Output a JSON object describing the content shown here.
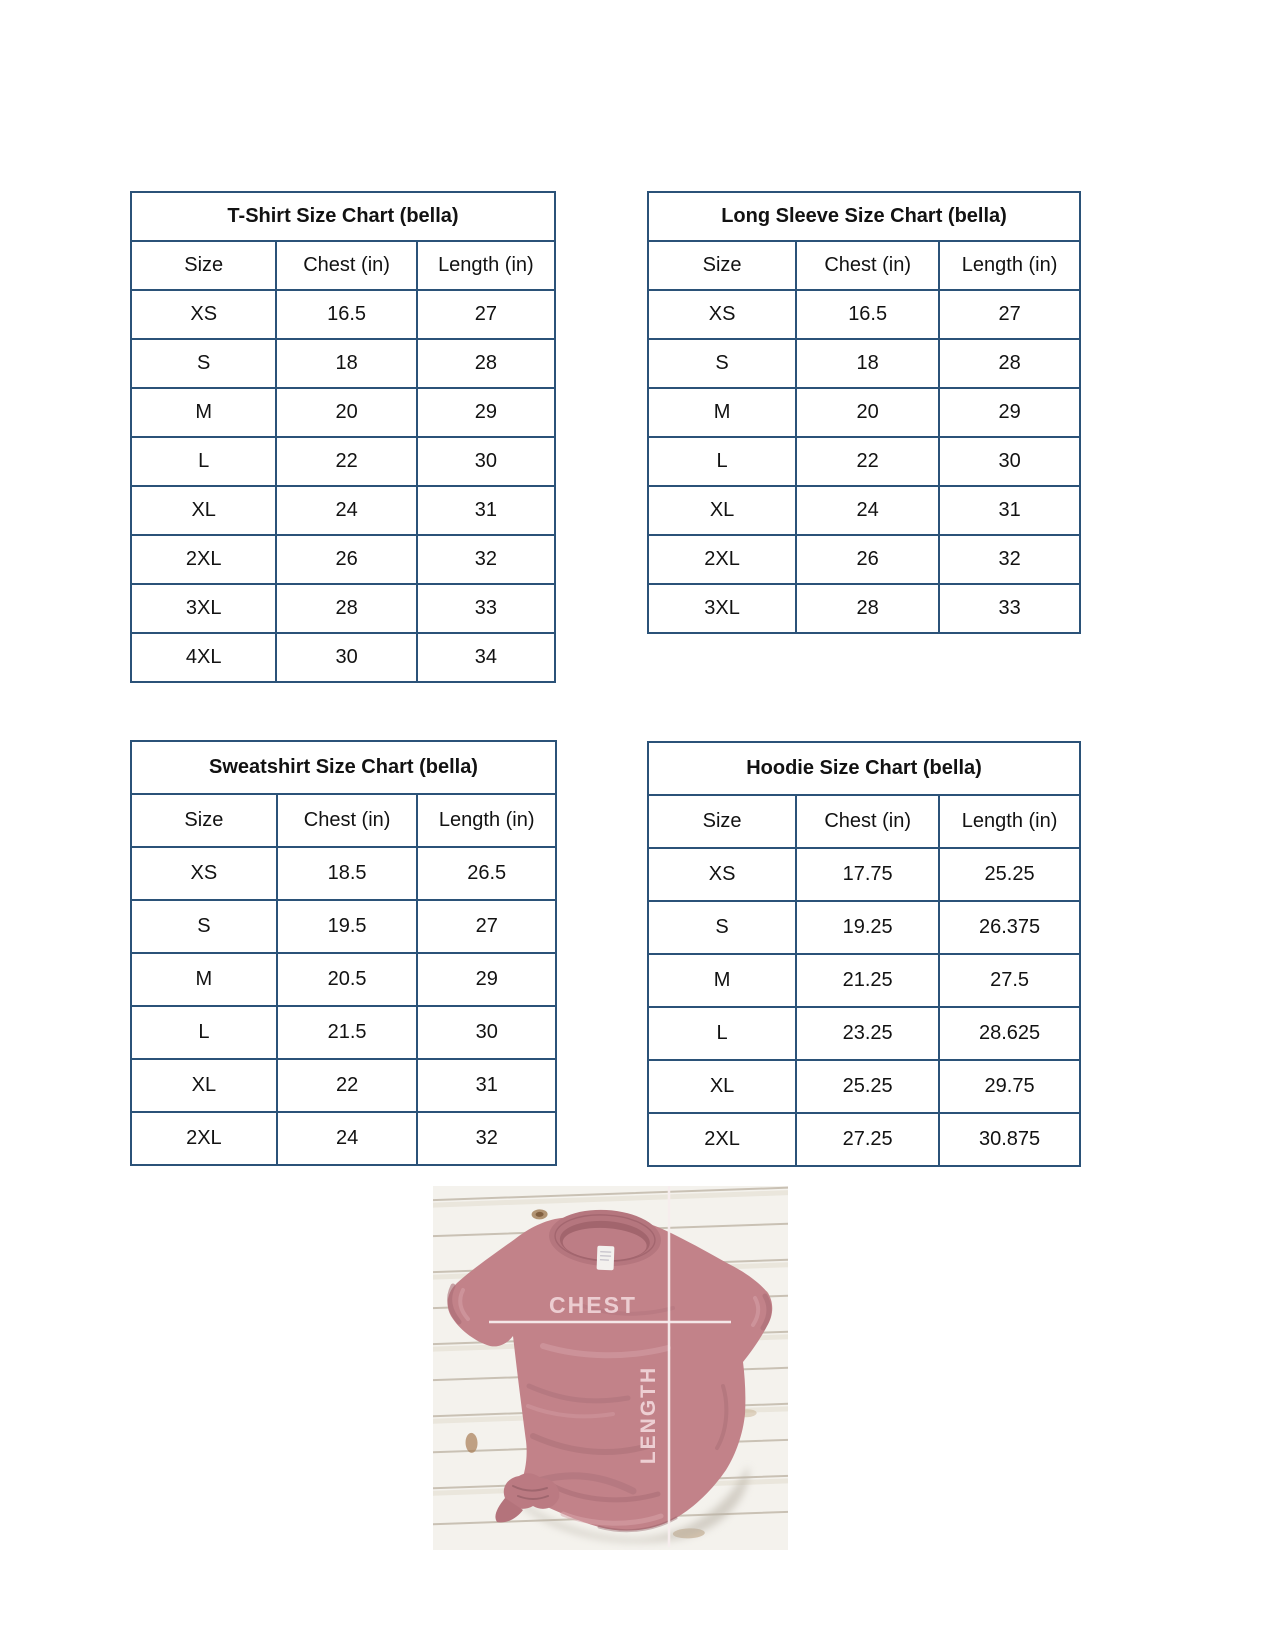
{
  "page": {
    "background": "#ffffff",
    "table_border_color": "#2b5278",
    "text_color": "#121212"
  },
  "tables": [
    {
      "id": "tshirt",
      "title": "T-Shirt Size Chart  (bella)",
      "headers": [
        "Size",
        "Chest (in)",
        "Length (in)"
      ],
      "rows": [
        [
          "XS",
          "16.5",
          "27"
        ],
        [
          "S",
          "18",
          "28"
        ],
        [
          "M",
          "20",
          "29"
        ],
        [
          "L",
          "22",
          "30"
        ],
        [
          "XL",
          "24",
          "31"
        ],
        [
          "2XL",
          "26",
          "32"
        ],
        [
          "3XL",
          "28",
          "33"
        ],
        [
          "4XL",
          "30",
          "34"
        ]
      ]
    },
    {
      "id": "longsleeve",
      "title": "Long Sleeve Size Chart  (bella)",
      "headers": [
        "Size",
        "Chest (in)",
        "Length (in)"
      ],
      "rows": [
        [
          "XS",
          "16.5",
          "27"
        ],
        [
          "S",
          "18",
          "28"
        ],
        [
          "M",
          "20",
          "29"
        ],
        [
          "L",
          "22",
          "30"
        ],
        [
          "XL",
          "24",
          "31"
        ],
        [
          "2XL",
          "26",
          "32"
        ],
        [
          "3XL",
          "28",
          "33"
        ]
      ]
    },
    {
      "id": "sweatshirt",
      "title": "Sweatshirt Size Chart (bella)",
      "headers": [
        "Size",
        "Chest (in)",
        "Length (in)"
      ],
      "rows": [
        [
          "XS",
          "18.5",
          "26.5"
        ],
        [
          "S",
          "19.5",
          "27"
        ],
        [
          "M",
          "20.5",
          "29"
        ],
        [
          "L",
          "21.5",
          "30"
        ],
        [
          "XL",
          "22",
          "31"
        ],
        [
          "2XL",
          "24",
          "32"
        ]
      ]
    },
    {
      "id": "hoodie",
      "title": "Hoodie Size Chart (bella)",
      "headers": [
        "Size",
        "Chest (in)",
        "Length (in)"
      ],
      "rows": [
        [
          "XS",
          "17.75",
          "25.25"
        ],
        [
          "S",
          "19.25",
          "26.375"
        ],
        [
          "M",
          "21.25",
          "27.5"
        ],
        [
          "L",
          "23.25",
          "28.625"
        ],
        [
          "XL",
          "25.25",
          "29.75"
        ],
        [
          "2XL",
          "27.25",
          "30.875"
        ]
      ]
    }
  ],
  "photo": {
    "chest_label": "CHEST",
    "length_label": "LENGTH",
    "shirt_color": "#c28289",
    "line_color": "#f7edee",
    "label_color": "#f2d8dc"
  }
}
